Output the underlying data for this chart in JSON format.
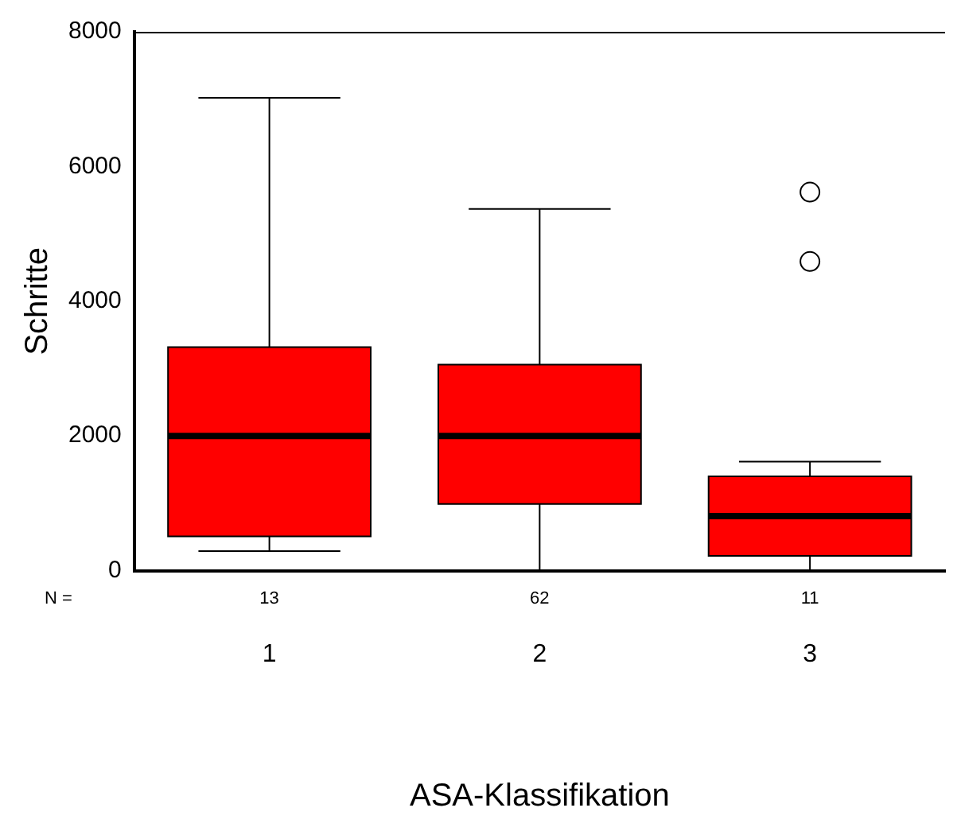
{
  "chart_data": {
    "type": "box",
    "xlabel": "ASA-Klassifikation",
    "ylabel": "Schritte",
    "categories": [
      "1",
      "2",
      "3"
    ],
    "color": "#ff0000",
    "ylim": [
      0,
      8000
    ],
    "yticks": [
      0,
      2000,
      4000,
      6000,
      8000
    ],
    "grid": false,
    "boxes": [
      {
        "low": 290,
        "q1": 510,
        "median": 2000,
        "q3": 3320,
        "high": 7020
      },
      {
        "low": 0,
        "q1": 990,
        "median": 2000,
        "q3": 3060,
        "high": 5370
      },
      {
        "low": 0,
        "q1": 220,
        "median": 810,
        "q3": 1400,
        "high": 1620,
        "outliers": [
          4590,
          5620
        ]
      }
    ],
    "annotations": [
      "N =",
      "13",
      "62",
      "11"
    ]
  }
}
